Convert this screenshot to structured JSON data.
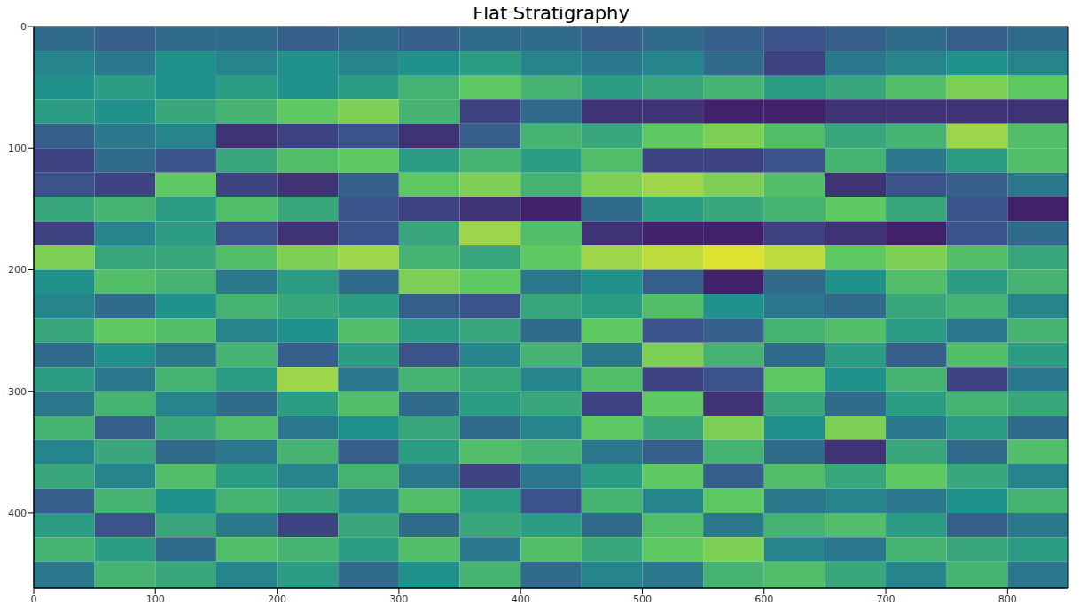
{
  "chart_data": {
    "type": "heatmap",
    "title": "Flat Stratigraphy",
    "xlim": [
      0,
      850
    ],
    "ylim": [
      0,
      462
    ],
    "xticks": [
      0,
      100,
      200,
      300,
      400,
      500,
      600,
      700,
      800
    ],
    "yticks": [
      0,
      100,
      200,
      300,
      400
    ],
    "grid": false,
    "clim": [
      -1,
      1
    ],
    "xbins": [
      0,
      50,
      100,
      150,
      200,
      250,
      300,
      350,
      400,
      450,
      500,
      550,
      600,
      650,
      700,
      750,
      800,
      850
    ],
    "ybins": [
      0,
      20,
      40,
      60,
      80,
      100,
      120,
      140,
      160,
      180,
      200,
      220,
      240,
      260,
      280,
      300,
      320,
      340,
      360,
      380,
      400,
      420,
      440,
      462
    ],
    "cells": [
      [
        -0.3,
        -0.4,
        -0.3,
        -0.3,
        -0.4,
        -0.3,
        -0.4,
        -0.3,
        -0.3,
        -0.4,
        -0.3,
        -0.4,
        -0.5,
        -0.4,
        -0.3,
        -0.4,
        -0.3
      ],
      [
        -0.1,
        -0.2,
        0,
        -0.1,
        0,
        -0.1,
        0,
        0.1,
        -0.1,
        -0.2,
        -0.1,
        -0.3,
        -0.6,
        -0.2,
        -0.1,
        0,
        -0.1
      ],
      [
        0,
        0.1,
        0,
        0.1,
        0,
        0.1,
        0.3,
        0.5,
        0.3,
        0.1,
        0.2,
        0.3,
        0.1,
        0.2,
        0.4,
        0.6,
        0.5
      ],
      [
        0.1,
        0,
        0.2,
        0.3,
        0.5,
        0.6,
        0.3,
        -0.6,
        -0.3,
        -0.7,
        -0.7,
        -0.8,
        -0.8,
        -0.7,
        -0.7,
        -0.7,
        -0.7
      ],
      [
        -0.4,
        -0.2,
        -0.1,
        -0.7,
        -0.6,
        -0.5,
        -0.7,
        -0.4,
        0.3,
        0.2,
        0.5,
        0.6,
        0.4,
        0.2,
        0.3,
        0.7,
        0.4
      ],
      [
        -0.6,
        -0.3,
        -0.5,
        0.2,
        0.4,
        0.5,
        0.1,
        0.3,
        0.1,
        0.4,
        -0.6,
        -0.6,
        -0.5,
        0.3,
        -0.2,
        0.1,
        0.4
      ],
      [
        -0.5,
        -0.6,
        0.5,
        -0.6,
        -0.7,
        -0.4,
        0.5,
        0.6,
        0.3,
        0.6,
        0.7,
        0.6,
        0.4,
        -0.7,
        -0.5,
        -0.4,
        -0.2
      ],
      [
        0.2,
        0.3,
        0.1,
        0.4,
        0.2,
        -0.5,
        -0.6,
        -0.7,
        -0.8,
        -0.3,
        0.1,
        0.2,
        0.3,
        0.5,
        0.2,
        -0.5,
        -0.8
      ],
      [
        -0.6,
        -0.1,
        0.1,
        -0.5,
        -0.7,
        -0.5,
        0.2,
        0.7,
        0.4,
        -0.7,
        -0.8,
        -0.8,
        -0.6,
        -0.7,
        -0.8,
        -0.5,
        -0.3
      ],
      [
        0.6,
        0.2,
        0.2,
        0.4,
        0.6,
        0.7,
        0.3,
        0.2,
        0.5,
        0.7,
        0.8,
        0.9,
        0.8,
        0.5,
        0.6,
        0.4,
        0.2
      ],
      [
        0,
        0.4,
        0.3,
        -0.2,
        0.1,
        -0.3,
        0.6,
        0.5,
        -0.2,
        0,
        -0.4,
        -0.8,
        -0.3,
        0,
        0.4,
        0.1,
        0.3
      ],
      [
        -0.1,
        -0.3,
        0,
        0.3,
        0.2,
        0.1,
        -0.4,
        -0.5,
        0.2,
        0.1,
        0.4,
        0,
        -0.2,
        -0.3,
        0.2,
        0.3,
        -0.1
      ],
      [
        0.2,
        0.5,
        0.4,
        -0.1,
        0,
        0.4,
        0.1,
        0.2,
        -0.3,
        0.5,
        -0.5,
        -0.4,
        0.3,
        0.4,
        0.1,
        -0.2,
        0.3
      ],
      [
        -0.3,
        0,
        -0.2,
        0.3,
        -0.4,
        0.1,
        -0.5,
        -0.1,
        0.3,
        -0.2,
        0.6,
        0.3,
        -0.3,
        0.1,
        -0.4,
        0.4,
        0.1
      ],
      [
        0.1,
        -0.2,
        0.3,
        0.1,
        0.7,
        -0.2,
        0.3,
        0.2,
        -0.1,
        0.4,
        -0.6,
        -0.5,
        0.5,
        0,
        0.3,
        -0.6,
        -0.2
      ],
      [
        -0.2,
        0.3,
        -0.1,
        -0.3,
        0.1,
        0.4,
        -0.3,
        0.1,
        0.2,
        -0.6,
        0.5,
        -0.7,
        0.2,
        -0.3,
        0.1,
        0.3,
        0.2
      ],
      [
        0.3,
        -0.4,
        0.2,
        0.4,
        -0.2,
        0,
        0.2,
        -0.3,
        -0.1,
        0.5,
        0.2,
        0.6,
        0,
        0.6,
        -0.2,
        0.1,
        -0.3
      ],
      [
        -0.1,
        0.2,
        -0.3,
        -0.2,
        0.3,
        -0.4,
        0.1,
        0.4,
        0.3,
        -0.2,
        -0.4,
        0.3,
        -0.3,
        -0.7,
        0.2,
        -0.3,
        0.4
      ],
      [
        0.2,
        -0.1,
        0.4,
        0.1,
        -0.1,
        0.3,
        -0.2,
        -0.6,
        -0.2,
        0.1,
        0.5,
        -0.4,
        0.4,
        0.2,
        0.5,
        0.2,
        -0.1
      ],
      [
        -0.4,
        0.3,
        0,
        0.3,
        0.2,
        -0.1,
        0.4,
        0.1,
        -0.5,
        0.3,
        -0.1,
        0.5,
        -0.2,
        -0.1,
        -0.2,
        0,
        0.3
      ],
      [
        0.1,
        -0.5,
        0.2,
        -0.2,
        -0.6,
        0.2,
        -0.3,
        0.2,
        0.1,
        -0.3,
        0.4,
        -0.2,
        0.3,
        0.4,
        0.1,
        -0.4,
        -0.2
      ],
      [
        0.3,
        0.1,
        -0.3,
        0.4,
        0.3,
        0.1,
        0.4,
        -0.2,
        0.4,
        0.2,
        0.5,
        0.6,
        -0.1,
        -0.2,
        0.3,
        0.2,
        0.1
      ],
      [
        -0.2,
        0.3,
        0.2,
        -0.1,
        0.1,
        -0.3,
        0,
        0.3,
        -0.3,
        -0.1,
        -0.2,
        0.3,
        0.4,
        0.2,
        -0.1,
        0.3,
        -0.2
      ]
    ]
  }
}
